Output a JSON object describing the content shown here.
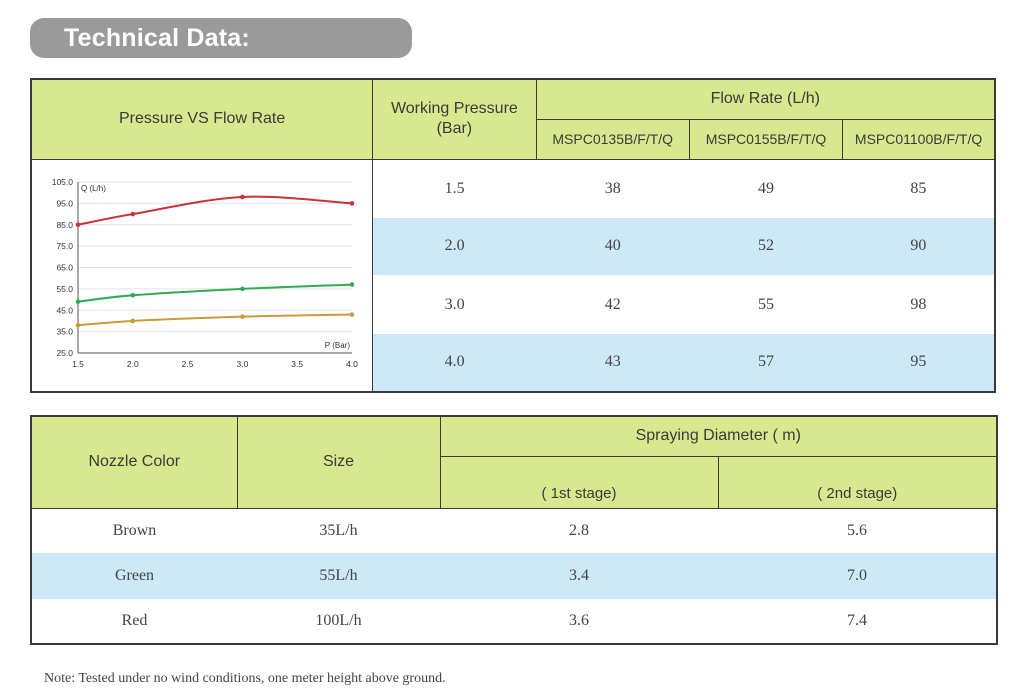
{
  "banner": {
    "title": "Technical Data:"
  },
  "flow_table": {
    "chart_header": "Pressure   VS   Flow Rate",
    "pressure_header_line1": "Working Pressure",
    "pressure_header_line2": "(Bar)",
    "flow_header": "Flow Rate (L/h)",
    "models": [
      "MSPC0135B/F/T/Q",
      "MSPC0155B/F/T/Q",
      "MSPC01100B/F/T/Q"
    ],
    "rows": [
      {
        "pressure": "1.5",
        "v1": "38",
        "v2": "49",
        "v3": "85"
      },
      {
        "pressure": "2.0",
        "v1": "40",
        "v2": "52",
        "v3": "90"
      },
      {
        "pressure": "3.0",
        "v1": "42",
        "v2": "55",
        "v3": "98"
      },
      {
        "pressure": "4.0",
        "v1": "43",
        "v2": "57",
        "v3": "95"
      }
    ]
  },
  "chart_data": {
    "type": "line",
    "title": "",
    "xlabel": "P (Bar)",
    "ylabel": "Q (L/h)",
    "xlim": [
      1.5,
      4.0
    ],
    "ylim": [
      25,
      105
    ],
    "x_ticks": [
      "1.5",
      "2.0",
      "2.5",
      "3.0",
      "3.5",
      "4.0"
    ],
    "y_ticks": [
      "105.0",
      "95.0",
      "85.0",
      "75.0",
      "65.0",
      "55.0",
      "45.0",
      "35.0",
      "25.0"
    ],
    "grid": true,
    "series": [
      {
        "color": "#c8323a",
        "x": [
          1.5,
          2.0,
          3.0,
          4.0
        ],
        "values": [
          85,
          90,
          98,
          95
        ]
      },
      {
        "color": "#2faa55",
        "x": [
          1.5,
          2.0,
          3.0,
          4.0
        ],
        "values": [
          49,
          52,
          55,
          57
        ]
      },
      {
        "color": "#c99a3a",
        "x": [
          1.5,
          2.0,
          3.0,
          4.0
        ],
        "values": [
          38,
          40,
          42,
          43
        ]
      }
    ]
  },
  "nozzle_table": {
    "color_header": "Nozzle Color",
    "size_header": "Size",
    "spray_header": "Spraying Diameter ( m)",
    "stage1_header": "( 1st stage)",
    "stage2_header": "( 2nd stage)",
    "rows": [
      {
        "color": "Brown",
        "size": "35L/h",
        "s1": "2.8",
        "s2": "5.6"
      },
      {
        "color": "Green",
        "size": "55L/h",
        "s1": "3.4",
        "s2": "7.0"
      },
      {
        "color": "Red",
        "size": "100L/h",
        "s1": "3.6",
        "s2": "7.4"
      }
    ]
  },
  "note": "Note: Tested under no wind conditions, one meter height above ground."
}
